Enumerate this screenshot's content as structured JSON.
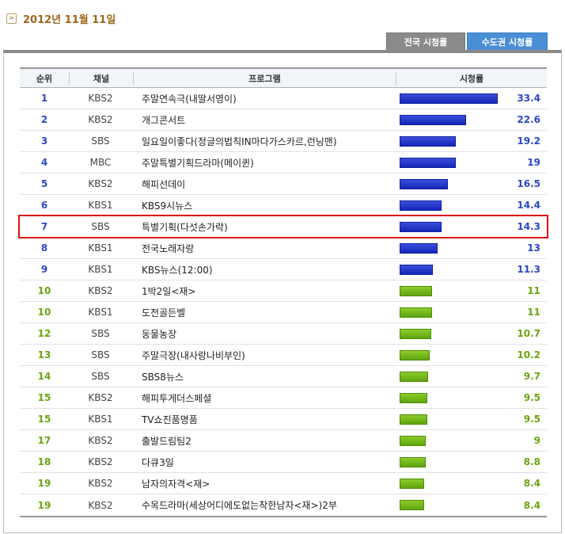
{
  "date": "2012년 11월 11일",
  "tabs": {
    "national": "전국 시청률",
    "metro": "수도권 시청률"
  },
  "header": {
    "rank": "순위",
    "channel": "채널",
    "program": "프로그램",
    "rating": "시청률"
  },
  "colors": {
    "blue_rank": "#2a47c8",
    "green_rank": "#6aa511",
    "blue_bar": "#1a2fc4",
    "green_bar": "#6cb11a",
    "highlight": "#e01010"
  },
  "max_rating": 33.4,
  "highlighted_rank_index": 6,
  "rows": [
    {
      "rank": "1",
      "channel": "KBS2",
      "program": "주말연속극(내딸서영이)",
      "rating": "33.4",
      "value": 33.4,
      "color": "blue"
    },
    {
      "rank": "2",
      "channel": "KBS2",
      "program": "개그콘서트",
      "rating": "22.6",
      "value": 22.6,
      "color": "blue"
    },
    {
      "rank": "3",
      "channel": "SBS",
      "program": "일요일이좋다(정글의법칙IN마다가스카르,런닝맨)",
      "rating": "19.2",
      "value": 19.2,
      "color": "blue"
    },
    {
      "rank": "4",
      "channel": "MBC",
      "program": "주말특별기획드라마(메이퀸)",
      "rating": "19",
      "value": 19,
      "color": "blue"
    },
    {
      "rank": "5",
      "channel": "KBS2",
      "program": "해피선데이",
      "rating": "16.5",
      "value": 16.5,
      "color": "blue"
    },
    {
      "rank": "6",
      "channel": "KBS1",
      "program": "KBS9시뉴스",
      "rating": "14.4",
      "value": 14.4,
      "color": "blue"
    },
    {
      "rank": "7",
      "channel": "SBS",
      "program": "특별기획(다섯손가락)",
      "rating": "14.3",
      "value": 14.3,
      "color": "blue"
    },
    {
      "rank": "8",
      "channel": "KBS1",
      "program": "전국노래자랑",
      "rating": "13",
      "value": 13,
      "color": "blue"
    },
    {
      "rank": "9",
      "channel": "KBS1",
      "program": "KBS뉴스(12:00)",
      "rating": "11.3",
      "value": 11.3,
      "color": "blue"
    },
    {
      "rank": "10",
      "channel": "KBS2",
      "program": "1박2일<재>",
      "rating": "11",
      "value": 11,
      "color": "green"
    },
    {
      "rank": "10",
      "channel": "KBS1",
      "program": "도전골든벨",
      "rating": "11",
      "value": 11,
      "color": "green"
    },
    {
      "rank": "12",
      "channel": "SBS",
      "program": "동물농장",
      "rating": "10.7",
      "value": 10.7,
      "color": "green"
    },
    {
      "rank": "13",
      "channel": "SBS",
      "program": "주말극장(내사랑나비부인)",
      "rating": "10.2",
      "value": 10.2,
      "color": "green"
    },
    {
      "rank": "14",
      "channel": "SBS",
      "program": "SBS8뉴스",
      "rating": "9.7",
      "value": 9.7,
      "color": "green"
    },
    {
      "rank": "15",
      "channel": "KBS2",
      "program": "해피투게더스페셜",
      "rating": "9.5",
      "value": 9.5,
      "color": "green"
    },
    {
      "rank": "15",
      "channel": "KBS1",
      "program": "TV쇼진품명품",
      "rating": "9.5",
      "value": 9.5,
      "color": "green"
    },
    {
      "rank": "17",
      "channel": "KBS2",
      "program": "출발드림팀2",
      "rating": "9",
      "value": 9,
      "color": "green"
    },
    {
      "rank": "18",
      "channel": "KBS2",
      "program": "다큐3일",
      "rating": "8.8",
      "value": 8.8,
      "color": "green"
    },
    {
      "rank": "19",
      "channel": "KBS2",
      "program": "남자의자격<재>",
      "rating": "8.4",
      "value": 8.4,
      "color": "green"
    },
    {
      "rank": "19",
      "channel": "KBS2",
      "program": "수목드라마(세상어디에도없는착한남자<재>)2부",
      "rating": "8.4",
      "value": 8.4,
      "color": "green"
    }
  ]
}
